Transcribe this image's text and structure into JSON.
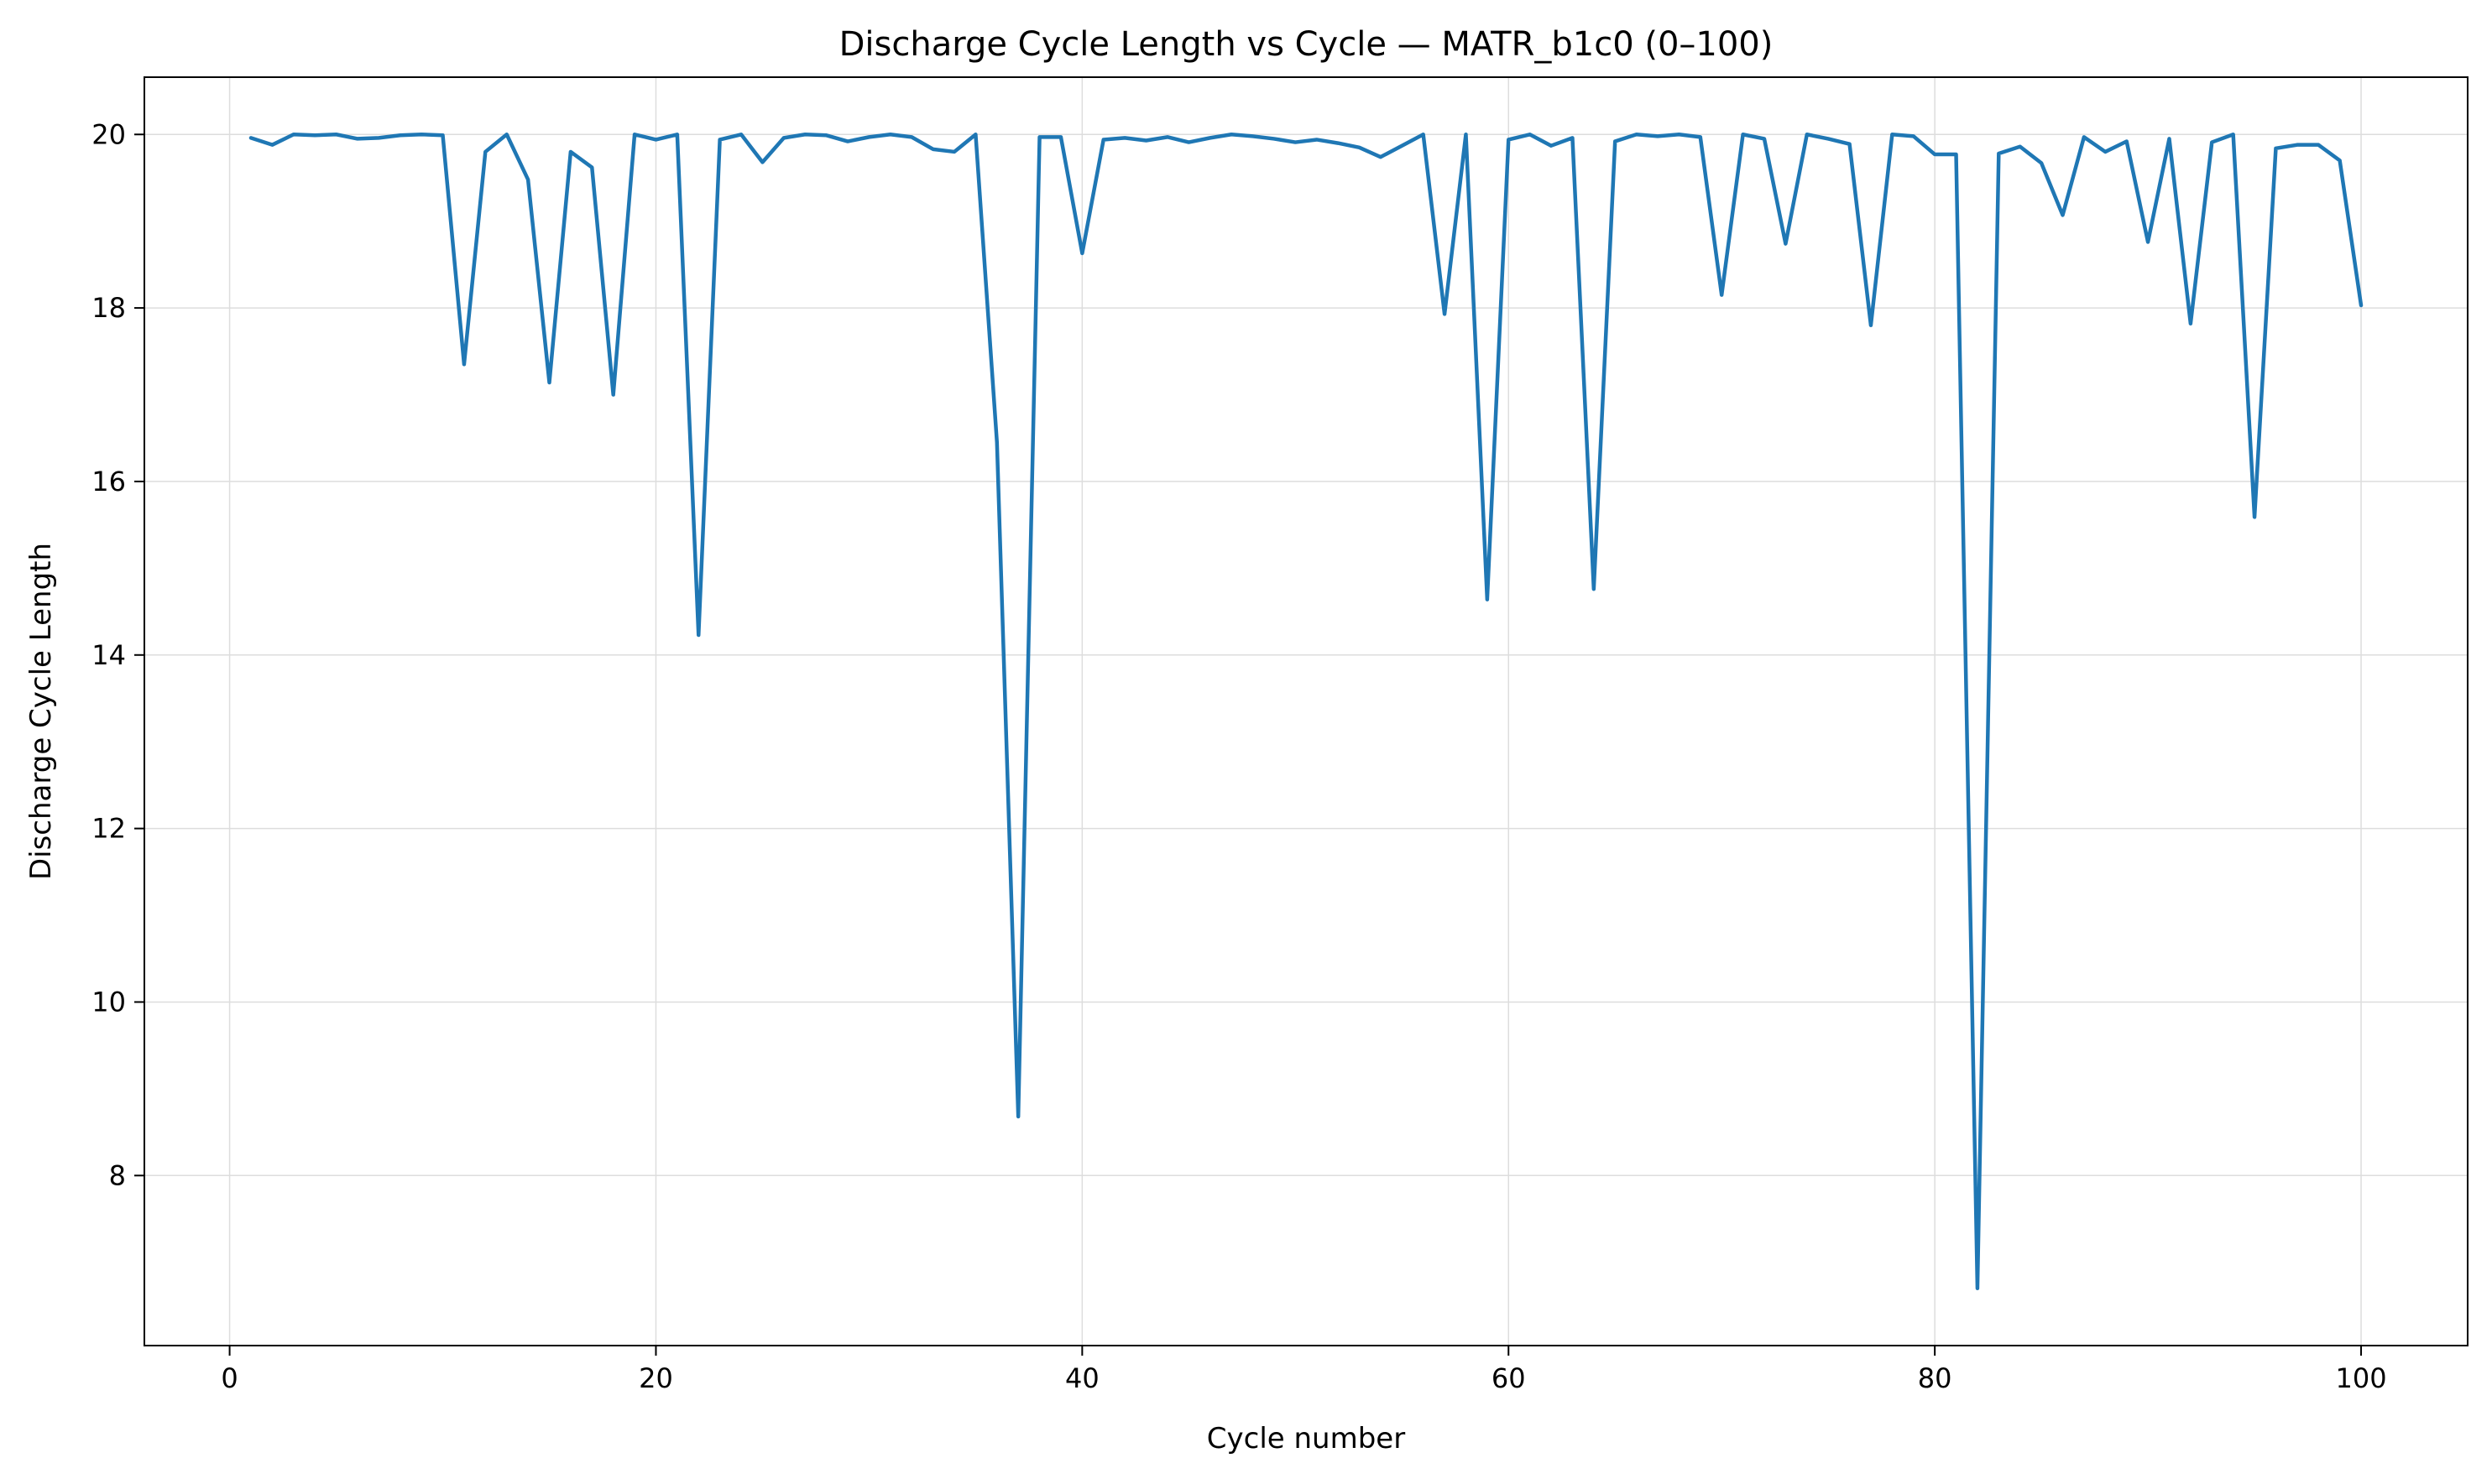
{
  "chart_data": {
    "type": "line",
    "title": "Discharge Cycle Length vs Cycle — MATR_b1c0 (0–100)",
    "xlabel": "Cycle number",
    "ylabel": "Discharge Cycle Length",
    "xlim": [
      -4,
      105
    ],
    "ylim": [
      6.04,
      20.66
    ],
    "xticks": [
      0,
      20,
      40,
      60,
      80,
      100
    ],
    "yticks": [
      8,
      10,
      12,
      14,
      16,
      18,
      20
    ],
    "grid": true,
    "legend": "none",
    "series": [
      {
        "color": "#1f77b4",
        "x": [
          1,
          2,
          3,
          4,
          5,
          6,
          7,
          8,
          9,
          10,
          11,
          12,
          13,
          14,
          15,
          16,
          17,
          18,
          19,
          20,
          21,
          22,
          23,
          24,
          25,
          26,
          27,
          28,
          29,
          30,
          31,
          32,
          33,
          34,
          35,
          36,
          37,
          38,
          39,
          40,
          41,
          42,
          43,
          44,
          45,
          46,
          47,
          48,
          49,
          50,
          51,
          52,
          53,
          54,
          55,
          56,
          57,
          58,
          59,
          60,
          61,
          62,
          63,
          64,
          65,
          66,
          67,
          68,
          69,
          70,
          71,
          72,
          73,
          74,
          75,
          76,
          77,
          78,
          79,
          80,
          81,
          82,
          83,
          84,
          85,
          86,
          87,
          88,
          89,
          90,
          91,
          92,
          93,
          94,
          95,
          96,
          97,
          98,
          99,
          100
        ],
        "values": [
          19.96,
          19.88,
          20.0,
          19.99,
          20.0,
          19.95,
          19.96,
          19.99,
          20.0,
          19.99,
          17.35,
          19.8,
          20.0,
          19.48,
          17.14,
          19.8,
          19.62,
          17.0,
          20.0,
          19.94,
          20.0,
          14.23,
          19.94,
          20.0,
          19.68,
          19.96,
          20.0,
          19.99,
          19.92,
          19.97,
          20.0,
          19.97,
          19.83,
          19.8,
          20.0,
          16.45,
          8.68,
          19.97,
          19.97,
          18.63,
          19.94,
          19.96,
          19.93,
          19.97,
          19.91,
          19.96,
          20.0,
          19.98,
          19.95,
          19.91,
          19.94,
          19.9,
          19.85,
          19.74,
          19.87,
          20.0,
          17.93,
          20.0,
          14.64,
          19.94,
          20.0,
          19.87,
          19.96,
          14.76,
          19.92,
          20.0,
          19.98,
          20.0,
          19.97,
          18.15,
          20.0,
          19.95,
          18.74,
          20.0,
          19.95,
          19.89,
          17.8,
          20.0,
          19.98,
          19.77,
          19.77,
          6.7,
          19.78,
          19.86,
          19.67,
          19.07,
          19.97,
          19.8,
          19.92,
          18.76,
          19.95,
          17.82,
          19.91,
          20.0,
          15.59,
          19.84,
          19.88,
          19.88,
          19.7,
          18.03
        ]
      }
    ]
  }
}
